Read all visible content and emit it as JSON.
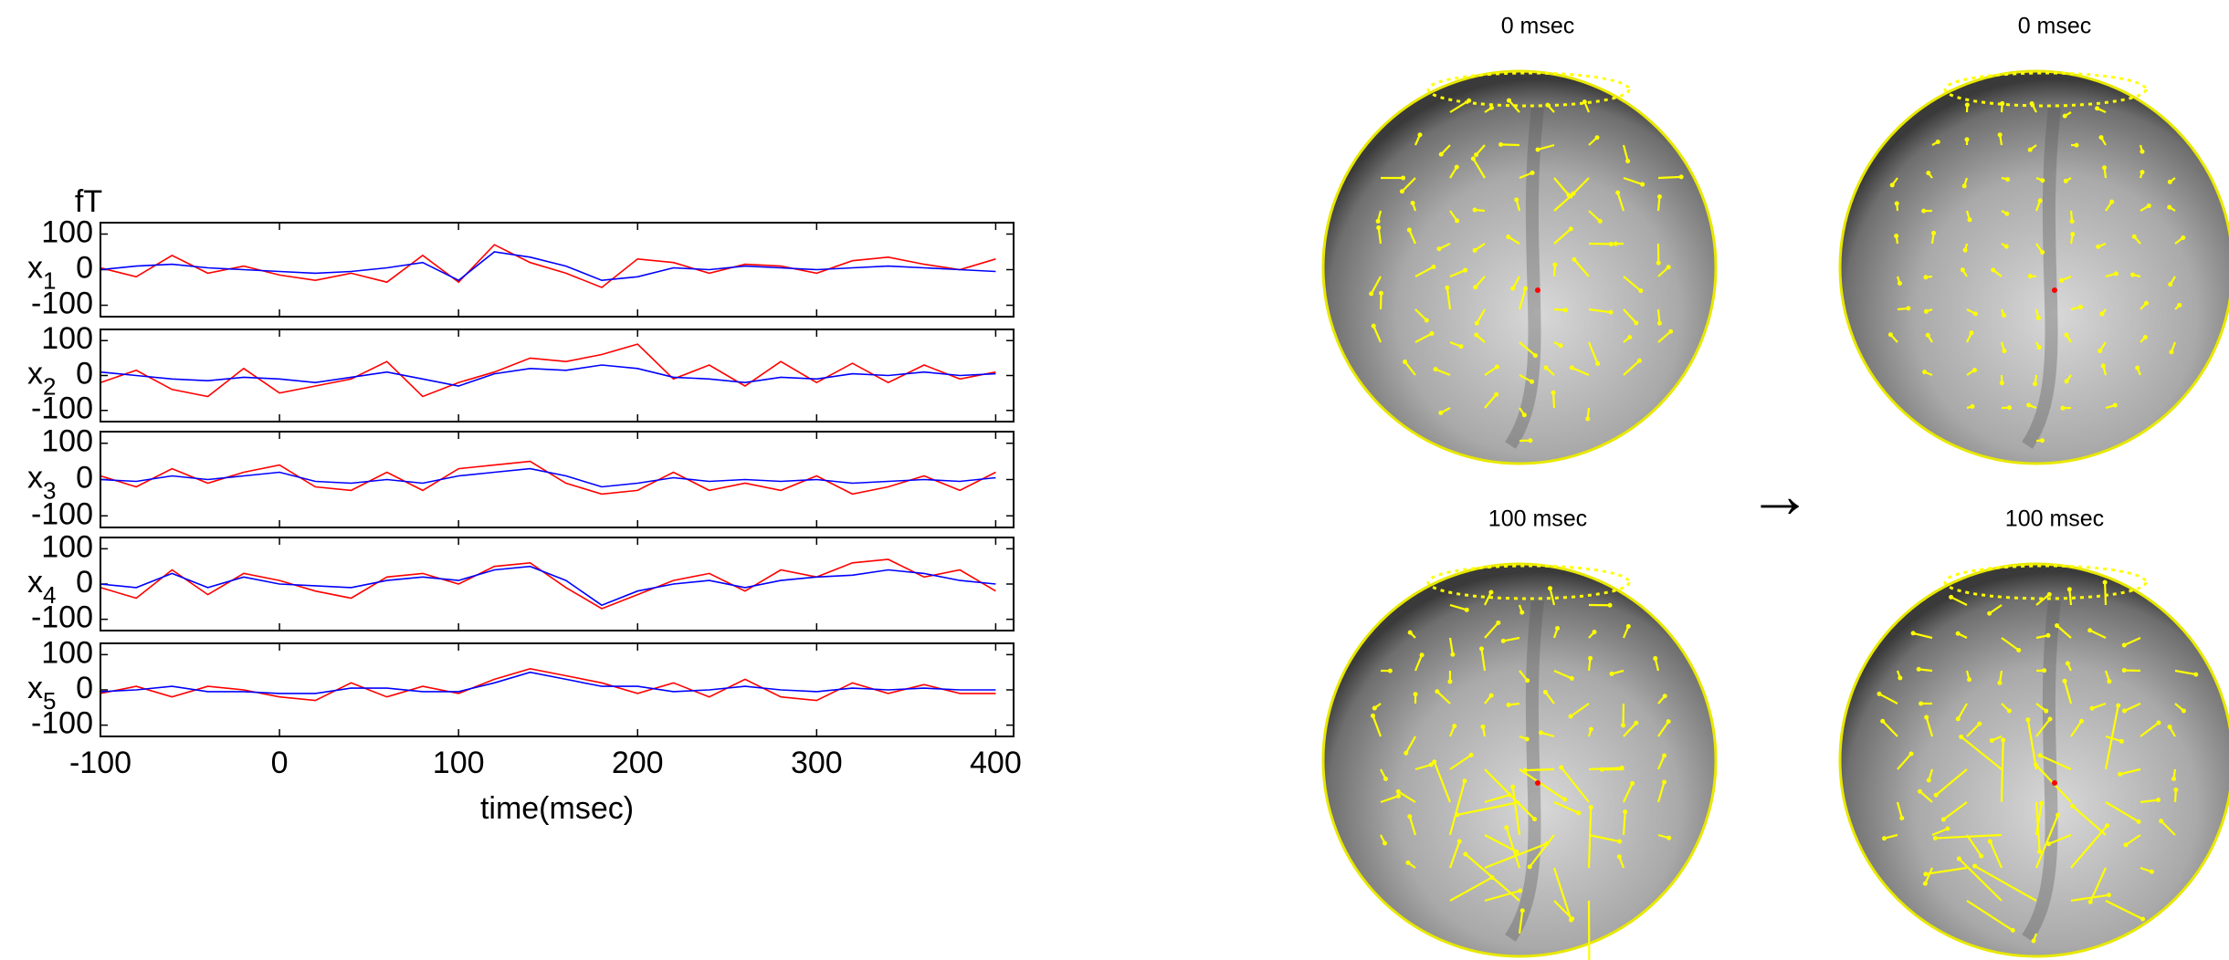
{
  "chart_data": {
    "type": "line",
    "unit_label": "fT",
    "xlabel": "time(msec)",
    "x": [
      -100,
      -80,
      -60,
      -40,
      -20,
      0,
      20,
      40,
      60,
      80,
      100,
      120,
      140,
      160,
      180,
      200,
      220,
      240,
      260,
      280,
      300,
      320,
      340,
      360,
      380,
      400
    ],
    "xlim": [
      -100,
      410
    ],
    "xticks": [
      -100,
      0,
      100,
      200,
      300,
      400
    ],
    "panels": [
      {
        "label": "x",
        "subscript": "1",
        "ylim": [
          -132,
          132
        ],
        "yticks": [
          -100,
          0,
          100
        ],
        "series": [
          {
            "color": "#ff0000",
            "values": [
              5,
              -20,
              40,
              -10,
              10,
              -15,
              -30,
              -10,
              -35,
              40,
              -35,
              70,
              20,
              -10,
              -50,
              30,
              20,
              -10,
              15,
              10,
              -10,
              25,
              35,
              15,
              0,
              30
            ]
          },
          {
            "color": "#0000ff",
            "values": [
              0,
              10,
              15,
              5,
              0,
              -5,
              -10,
              -5,
              5,
              20,
              -30,
              50,
              35,
              10,
              -30,
              -20,
              5,
              0,
              10,
              5,
              0,
              5,
              10,
              5,
              0,
              -5
            ]
          }
        ]
      },
      {
        "label": "x",
        "subscript": "2",
        "ylim": [
          -132,
          132
        ],
        "yticks": [
          -100,
          0,
          100
        ],
        "series": [
          {
            "color": "#ff0000",
            "values": [
              -20,
              15,
              -40,
              -60,
              20,
              -50,
              -30,
              -10,
              40,
              -60,
              -20,
              10,
              50,
              40,
              60,
              90,
              -10,
              30,
              -30,
              40,
              -20,
              35,
              -20,
              30,
              -10,
              10
            ]
          },
          {
            "color": "#0000ff",
            "values": [
              10,
              0,
              -10,
              -15,
              -5,
              -10,
              -20,
              -5,
              10,
              -10,
              -30,
              5,
              20,
              15,
              30,
              20,
              -5,
              -10,
              -20,
              -5,
              -10,
              5,
              0,
              10,
              0,
              5
            ]
          }
        ]
      },
      {
        "label": "x",
        "subscript": "3",
        "ylim": [
          -132,
          132
        ],
        "yticks": [
          -100,
          0,
          100
        ],
        "series": [
          {
            "color": "#ff0000",
            "values": [
              10,
              -20,
              30,
              -10,
              20,
              40,
              -20,
              -30,
              20,
              -30,
              30,
              40,
              50,
              -10,
              -40,
              -30,
              20,
              -30,
              -10,
              -30,
              10,
              -40,
              -20,
              10,
              -30,
              20
            ]
          },
          {
            "color": "#0000ff",
            "values": [
              0,
              -5,
              10,
              0,
              10,
              20,
              -5,
              -10,
              0,
              -10,
              10,
              20,
              30,
              10,
              -20,
              -10,
              5,
              -5,
              0,
              -5,
              0,
              -10,
              -5,
              0,
              -5,
              5
            ]
          }
        ]
      },
      {
        "label": "x",
        "subscript": "4",
        "ylim": [
          -132,
          132
        ],
        "yticks": [
          -100,
          0,
          100
        ],
        "series": [
          {
            "color": "#ff0000",
            "values": [
              -10,
              -40,
              40,
              -30,
              30,
              10,
              -20,
              -40,
              20,
              30,
              0,
              50,
              60,
              -10,
              -70,
              -30,
              10,
              30,
              -20,
              40,
              20,
              60,
              70,
              20,
              40,
              -20
            ]
          },
          {
            "color": "#0000ff",
            "values": [
              0,
              -10,
              30,
              -10,
              20,
              0,
              -5,
              -10,
              10,
              20,
              10,
              40,
              50,
              10,
              -60,
              -20,
              0,
              10,
              -10,
              10,
              20,
              25,
              40,
              30,
              10,
              0
            ]
          }
        ]
      },
      {
        "label": "x",
        "subscript": "5",
        "ylim": [
          -132,
          132
        ],
        "yticks": [
          -100,
          0,
          100
        ],
        "series": [
          {
            "color": "#ff0000",
            "values": [
              -10,
              10,
              -20,
              10,
              0,
              -20,
              -30,
              20,
              -20,
              10,
              -10,
              30,
              60,
              40,
              20,
              -10,
              20,
              -20,
              30,
              -20,
              -30,
              20,
              -10,
              15,
              -10,
              -10
            ]
          },
          {
            "color": "#0000ff",
            "values": [
              -5,
              0,
              10,
              -5,
              -5,
              -10,
              -10,
              5,
              5,
              -5,
              -5,
              20,
              50,
              30,
              10,
              10,
              -5,
              0,
              10,
              0,
              -5,
              5,
              0,
              5,
              0,
              0
            ]
          }
        ]
      }
    ]
  },
  "spheres": [
    {
      "title": "0 msec"
    },
    {
      "title": "0 msec"
    },
    {
      "title": "100 msec"
    },
    {
      "title": "100 msec"
    }
  ],
  "arrow": "→"
}
